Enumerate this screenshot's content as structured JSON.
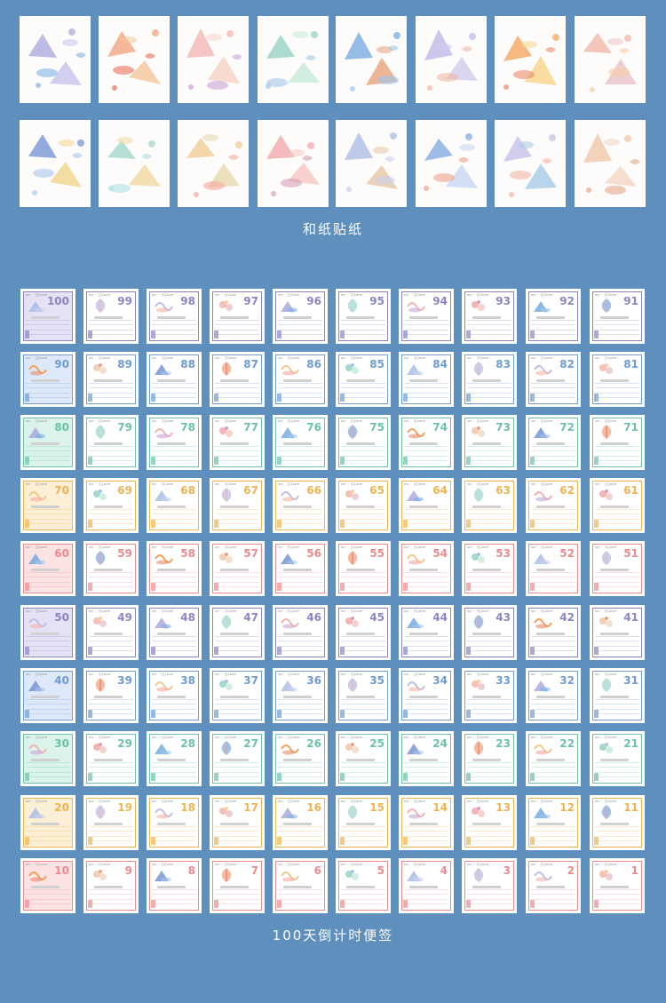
{
  "sections": {
    "washi_caption": "和纸贴纸",
    "countdown_caption": "100天倒计时便签"
  },
  "note_header": "DAY · 日子DATE",
  "row_colors": [
    "#8a86c4",
    "#6f9cd3",
    "#6cc2a8",
    "#efb451",
    "#ec8b8f",
    "#8a86c4",
    "#6f9cd3",
    "#6cc2a8",
    "#efb451",
    "#ec8b8f"
  ],
  "row_tints": [
    "#e6e1f4",
    "#dde9f8",
    "#dcf3ec",
    "#fbefd6",
    "#fbe2e3",
    "#e6e1f4",
    "#dde9f8",
    "#dcf3ec",
    "#fbefd6",
    "#fbe2e3"
  ],
  "art_palettes": [
    [
      "#a8a6dc",
      "#7fb2e6",
      "#c7c2ee"
    ],
    [
      "#f0a07a",
      "#e86f5a",
      "#f3c79a"
    ],
    [
      "#f2b3b0",
      "#c9a3d8",
      "#f6d2c4"
    ],
    [
      "#8fd0c0",
      "#a7c4e8",
      "#c6ead9"
    ],
    [
      "#6fa8dc",
      "#9dc6ee",
      "#e7a37c"
    ],
    [
      "#b9b6e6",
      "#f0b8a4",
      "#cfcdee"
    ],
    [
      "#f4a259",
      "#e98a6a",
      "#f6d38a"
    ],
    [
      "#f2b2a4",
      "#f6cfa5",
      "#e9c2c8"
    ],
    [
      "#6f8fd1",
      "#a8c4ec",
      "#f0d58a"
    ],
    [
      "#9ed6c9",
      "#b3dfe6",
      "#f1d7a0"
    ],
    [
      "#f2c98c",
      "#f6a8a0",
      "#e7d7ae"
    ],
    [
      "#f0a3a6",
      "#d99fb8",
      "#f5c7c0"
    ],
    [
      "#a7b9e3",
      "#c8d2ee",
      "#e6c6a5"
    ],
    [
      "#7ba7e0",
      "#f0a08a",
      "#c7d7f3"
    ],
    [
      "#c0bde8",
      "#f0b4a6",
      "#a7cbe9"
    ],
    [
      "#efc4a5",
      "#e8a58a",
      "#f2d6c2"
    ]
  ]
}
